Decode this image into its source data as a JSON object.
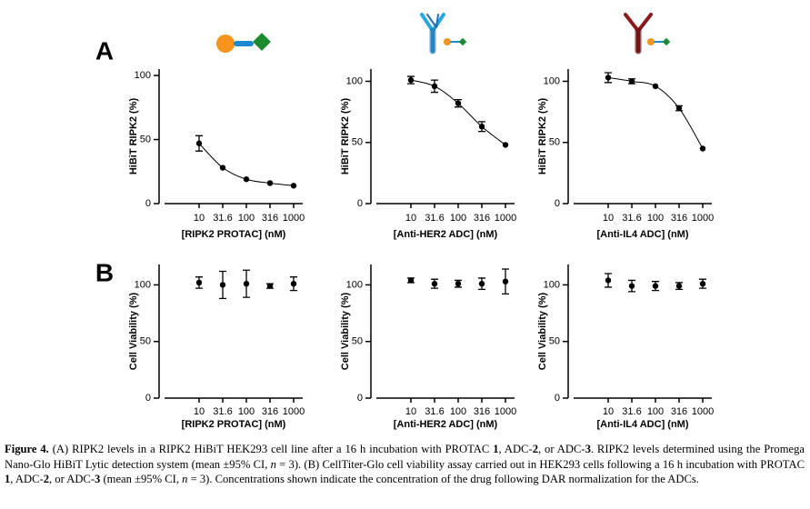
{
  "panel_labels": [
    "A",
    "B"
  ],
  "chart_data": [
    {
      "type": "scatter",
      "y_label": "HiBiT RIPK2 (%)",
      "x_label": "[RIPK2 PROTAC] (nM)",
      "categories": [
        "10",
        "31.6",
        "100",
        "316",
        "1000"
      ],
      "values": [
        47,
        28,
        19,
        16,
        14
      ],
      "errors": [
        6,
        null,
        null,
        null,
        null
      ],
      "ylim": [
        0,
        105
      ],
      "yticks": [
        0,
        50,
        100
      ],
      "fit_curve": true,
      "color": "#000000"
    },
    {
      "type": "scatter",
      "y_label": "HiBiT RIPK2 (%)",
      "x_label": "[Anti-HER2 ADC] (nM)",
      "categories": [
        "10",
        "31.6",
        "100",
        "316",
        "1000"
      ],
      "values": [
        101,
        96,
        82,
        63,
        48
      ],
      "errors": [
        3,
        5,
        3,
        4,
        null
      ],
      "ylim": [
        0,
        110
      ],
      "yticks": [
        0,
        50,
        100
      ],
      "fit_curve": true,
      "color": "#000000"
    },
    {
      "type": "scatter",
      "y_label": "HiBiT RIPK2 (%)",
      "x_label": "[Anti-IL4 ADC] (nM)",
      "categories": [
        "10",
        "31.6",
        "100",
        "316",
        "1000"
      ],
      "values": [
        103,
        100,
        96,
        78,
        45
      ],
      "errors": [
        4,
        2,
        null,
        2,
        null
      ],
      "ylim": [
        0,
        110
      ],
      "yticks": [
        0,
        50,
        100
      ],
      "fit_curve": true,
      "color": "#000000"
    },
    {
      "type": "scatter",
      "y_label": "Cell Viability (%)",
      "x_label": "[RIPK2 PROTAC] (nM)",
      "categories": [
        "10",
        "31.6",
        "100",
        "316",
        "1000"
      ],
      "values": [
        102,
        100,
        101,
        99,
        101
      ],
      "errors": [
        5,
        12,
        12,
        2,
        6
      ],
      "ylim": [
        0,
        118
      ],
      "yticks": [
        0,
        50,
        100
      ],
      "fit_curve": false,
      "color": "#000000"
    },
    {
      "type": "scatter",
      "y_label": "Cell Viability (%)",
      "x_label": "[Anti-HER2 ADC] (nM)",
      "categories": [
        "10",
        "31.6",
        "100",
        "316",
        "1000"
      ],
      "values": [
        104,
        101,
        101,
        101,
        103
      ],
      "errors": [
        2,
        4,
        3,
        5,
        11
      ],
      "ylim": [
        0,
        118
      ],
      "yticks": [
        0,
        50,
        100
      ],
      "fit_curve": false,
      "color": "#000000"
    },
    {
      "type": "scatter",
      "y_label": "Cell Viability (%)",
      "x_label": "[Anti-IL4 ADC] (nM)",
      "categories": [
        "10",
        "31.6",
        "100",
        "316",
        "1000"
      ],
      "values": [
        104,
        99,
        99,
        99,
        101
      ],
      "errors": [
        6,
        5,
        4,
        3,
        4
      ],
      "ylim": [
        0,
        118
      ],
      "yticks": [
        0,
        50,
        100
      ],
      "fit_curve": false,
      "color": "#000000"
    }
  ],
  "caption": [
    "Figure 4.",
    " (A) RIPK2 levels in a RIPK2 HiBiT HEK293 cell line after a 16 h incubation with PROTAC ",
    "1",
    ", ADC-",
    "2",
    ", or ADC-",
    "3",
    ". RIPK2 levels determined using the Promega Nano-Glo HiBiT Lytic detection system (mean ±95% CI, ",
    "n",
    " = 3). (B) CellTiter-Glo cell viability assay carried out in HEK293 cells following a 16 h incubation with PROTAC ",
    "1",
    ", ADC-",
    "2",
    ", or ADC-",
    "3",
    " (mean ±95% CI, ",
    "n",
    " = 3). Concentrations shown indicate the concentration of the drug following DAR normalization for the ADCs."
  ]
}
